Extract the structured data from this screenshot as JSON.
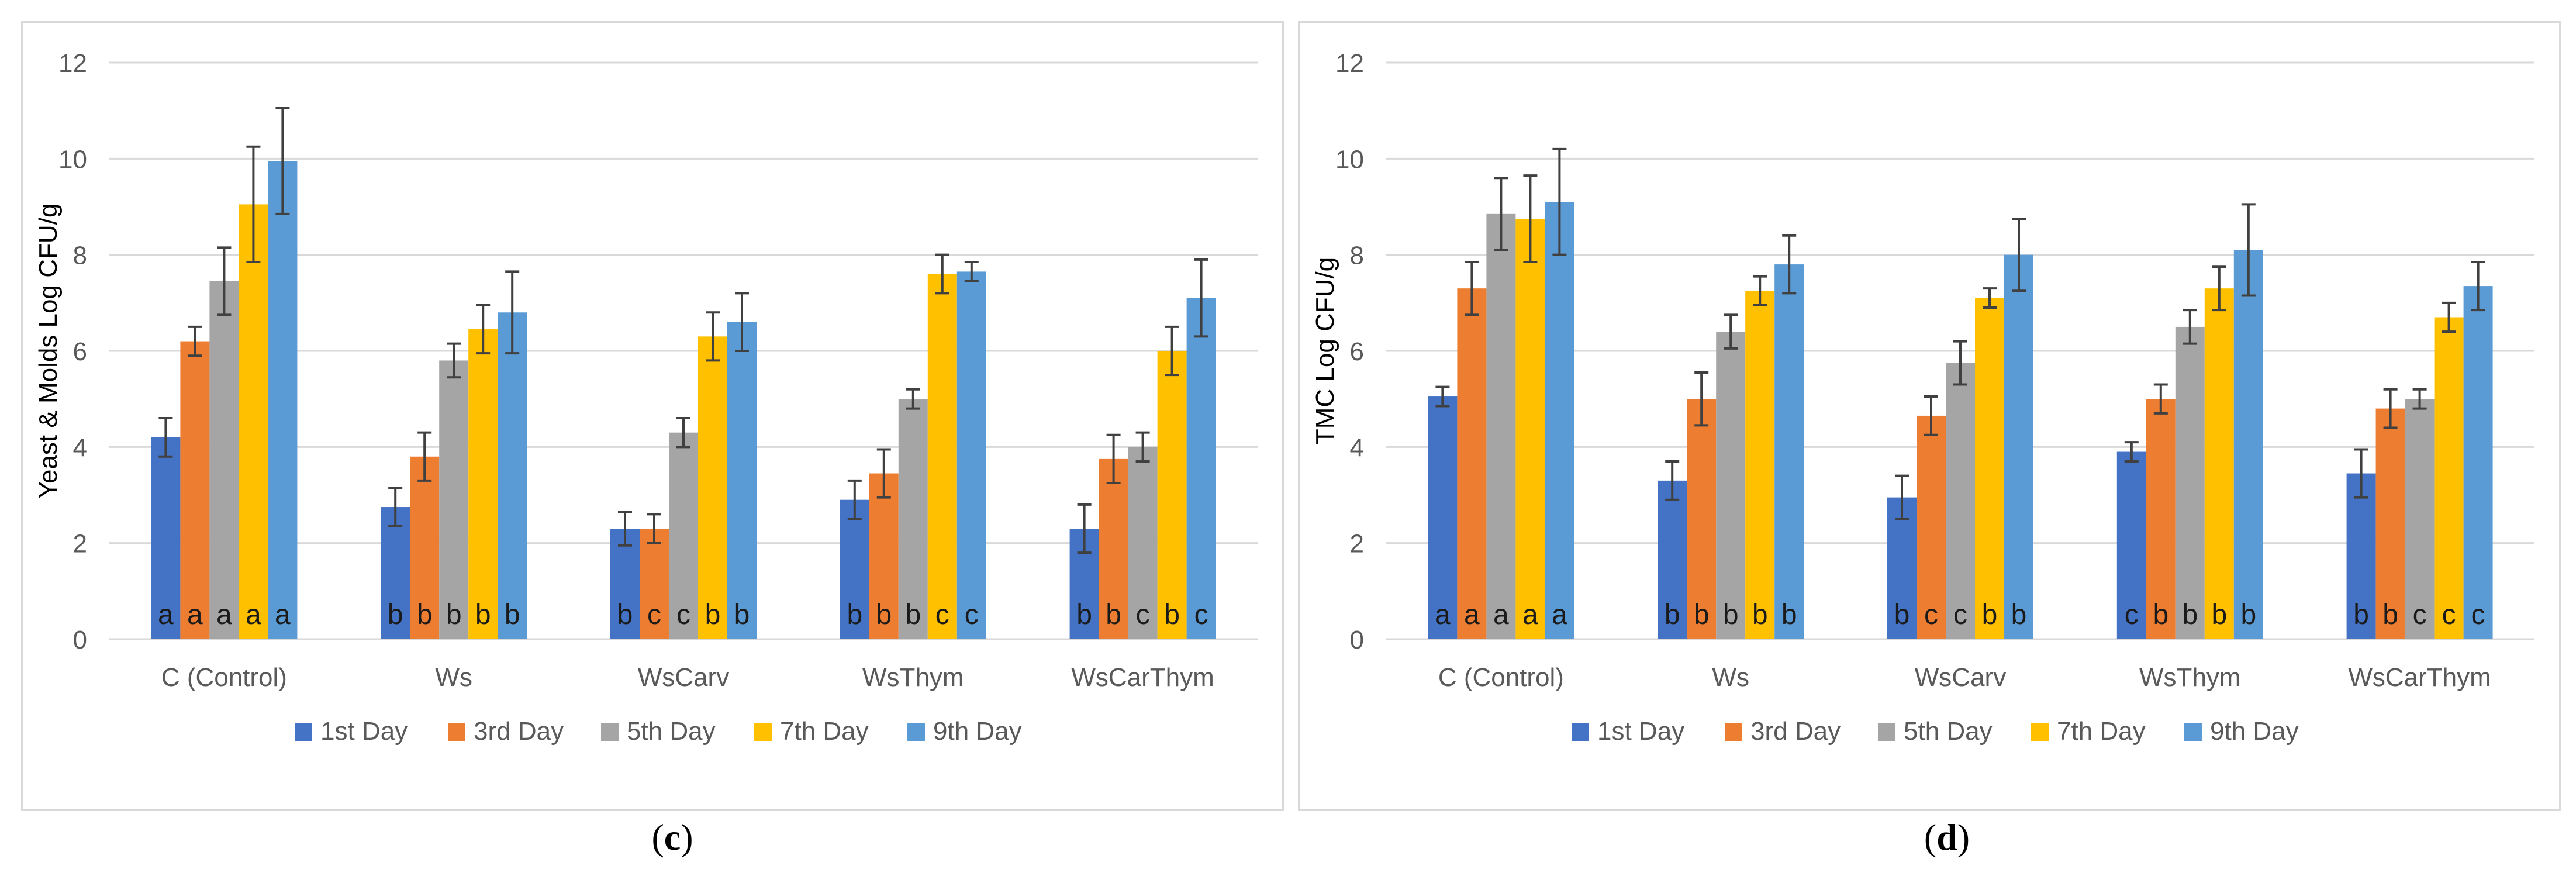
{
  "captions": {
    "c": "c",
    "d": "d"
  },
  "colors": {
    "series": [
      "#4472C4",
      "#ED7D31",
      "#A5A5A5",
      "#FFC000",
      "#5B9BD5"
    ],
    "grid": "#d9d9d9",
    "axis_text": "#595959",
    "error_bar": "#404040"
  },
  "chart_data": [
    {
      "id": "c",
      "type": "bar",
      "title": "",
      "xlabel": "",
      "ylabel": "Yeast & Molds Log CFU/g",
      "ylim": [
        0,
        12
      ],
      "yticks": [
        "0",
        "2",
        "4",
        "6",
        "8",
        "10",
        "12"
      ],
      "grid": true,
      "legend_position": "bottom",
      "categories": [
        "C (Control)",
        "Ws",
        "WsCarv",
        "WsThym",
        "WsCarThym"
      ],
      "series": [
        {
          "name": "1st Day",
          "values": [
            4.2,
            2.75,
            2.3,
            2.9,
            2.3
          ],
          "errors": [
            0.4,
            0.4,
            0.35,
            0.4,
            0.5
          ],
          "letters": [
            "a",
            "b",
            "b",
            "b",
            "b"
          ]
        },
        {
          "name": "3rd Day",
          "values": [
            6.2,
            3.8,
            2.3,
            3.45,
            3.75
          ],
          "errors": [
            0.3,
            0.5,
            0.3,
            0.5,
            0.5
          ],
          "letters": [
            "a",
            "b",
            "c",
            "b",
            "b"
          ]
        },
        {
          "name": "5th Day",
          "values": [
            7.45,
            5.8,
            4.3,
            5.0,
            4.0
          ],
          "errors": [
            0.7,
            0.35,
            0.3,
            0.2,
            0.3
          ],
          "letters": [
            "a",
            "b",
            "c",
            "b",
            "c"
          ]
        },
        {
          "name": "7th Day",
          "values": [
            9.05,
            6.45,
            6.3,
            7.6,
            6.0
          ],
          "errors": [
            1.2,
            0.5,
            0.5,
            0.4,
            0.5
          ],
          "letters": [
            "a",
            "b",
            "b",
            "c",
            "b"
          ]
        },
        {
          "name": "9th Day",
          "values": [
            9.95,
            6.8,
            6.6,
            7.65,
            7.1
          ],
          "errors": [
            1.1,
            0.85,
            0.6,
            0.2,
            0.8
          ],
          "letters": [
            "a",
            "b",
            "b",
            "c",
            "c"
          ]
        }
      ]
    },
    {
      "id": "d",
      "type": "bar",
      "title": "",
      "xlabel": "",
      "ylabel": "TMC Log CFU/g",
      "ylim": [
        0,
        12
      ],
      "yticks": [
        "0",
        "2",
        "4",
        "6",
        "8",
        "10",
        "12"
      ],
      "grid": true,
      "legend_position": "bottom",
      "categories": [
        "C (Control)",
        "Ws",
        "WsCarv",
        "WsThym",
        "WsCarThym"
      ],
      "series": [
        {
          "name": "1st Day",
          "values": [
            5.05,
            3.3,
            2.95,
            3.9,
            3.45
          ],
          "errors": [
            0.2,
            0.4,
            0.45,
            0.2,
            0.5
          ],
          "letters": [
            "a",
            "b",
            "b",
            "c",
            "b"
          ]
        },
        {
          "name": "3rd Day",
          "values": [
            7.3,
            5.0,
            4.65,
            5.0,
            4.8
          ],
          "errors": [
            0.55,
            0.55,
            0.4,
            0.3,
            0.4
          ],
          "letters": [
            "a",
            "b",
            "c",
            "b",
            "b"
          ]
        },
        {
          "name": "5th Day",
          "values": [
            8.85,
            6.4,
            5.75,
            6.5,
            5.0
          ],
          "errors": [
            0.75,
            0.35,
            0.45,
            0.35,
            0.2
          ],
          "letters": [
            "a",
            "b",
            "c",
            "b",
            "c"
          ]
        },
        {
          "name": "7th Day",
          "values": [
            8.75,
            7.25,
            7.1,
            7.3,
            6.7
          ],
          "errors": [
            0.9,
            0.3,
            0.2,
            0.45,
            0.3
          ],
          "letters": [
            "a",
            "b",
            "b",
            "b",
            "c"
          ]
        },
        {
          "name": "9th Day",
          "values": [
            9.1,
            7.8,
            8.0,
            8.1,
            7.35
          ],
          "errors": [
            1.1,
            0.6,
            0.75,
            0.95,
            0.5
          ],
          "letters": [
            "a",
            "b",
            "b",
            "b",
            "c"
          ]
        }
      ]
    }
  ]
}
